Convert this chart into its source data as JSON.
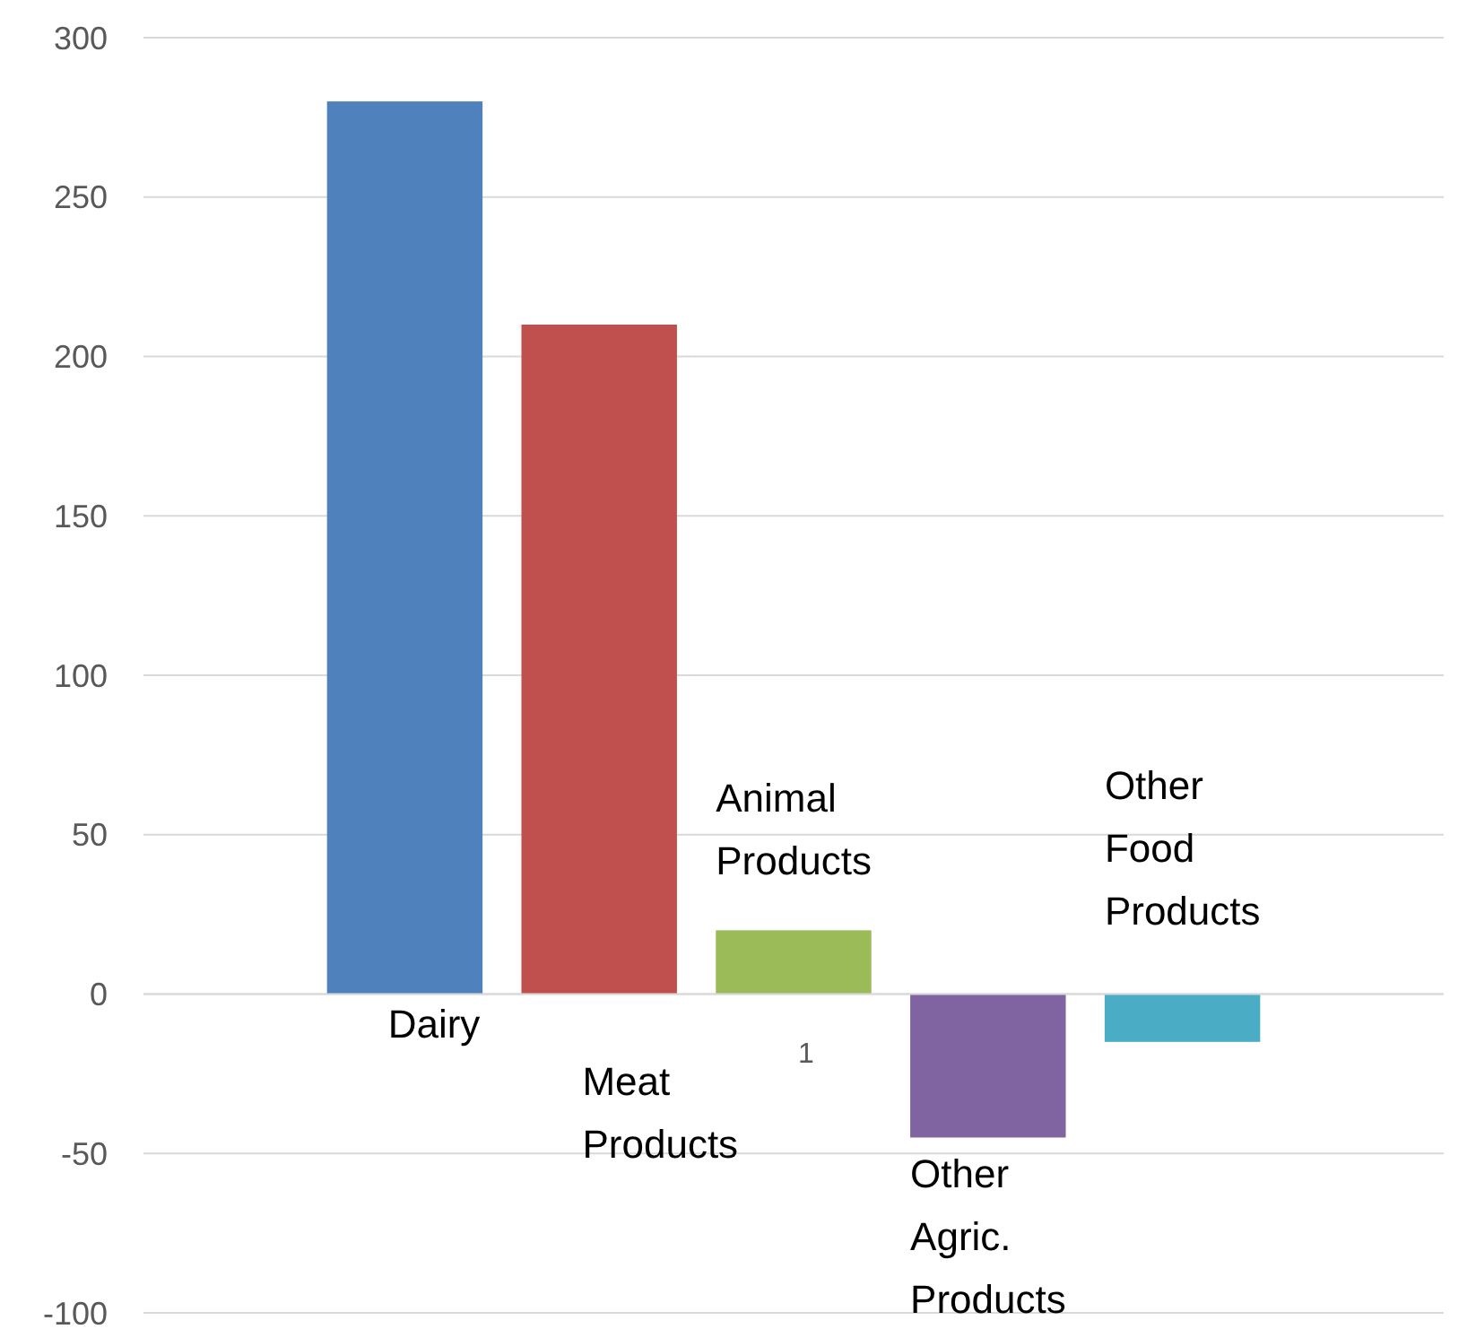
{
  "chart_data": {
    "type": "bar",
    "categories": [
      "1"
    ],
    "ylim": [
      -100,
      300
    ],
    "yticks": [
      -100,
      -50,
      0,
      50,
      100,
      150,
      200,
      250,
      300
    ],
    "grid": "y",
    "series": [
      {
        "name": "Dairy",
        "color": "#4f81bd",
        "values": [
          280
        ]
      },
      {
        "name": "Meat Products",
        "color": "#c0504d",
        "values": [
          210
        ]
      },
      {
        "name": "Animal Products",
        "color": "#9bbb59",
        "values": [
          20
        ]
      },
      {
        "name": "Other Agric. Products",
        "color": "#8064a2",
        "values": [
          -45
        ]
      },
      {
        "name": "Other Food Products",
        "color": "#4bacc6",
        "values": [
          -15
        ]
      }
    ]
  }
}
